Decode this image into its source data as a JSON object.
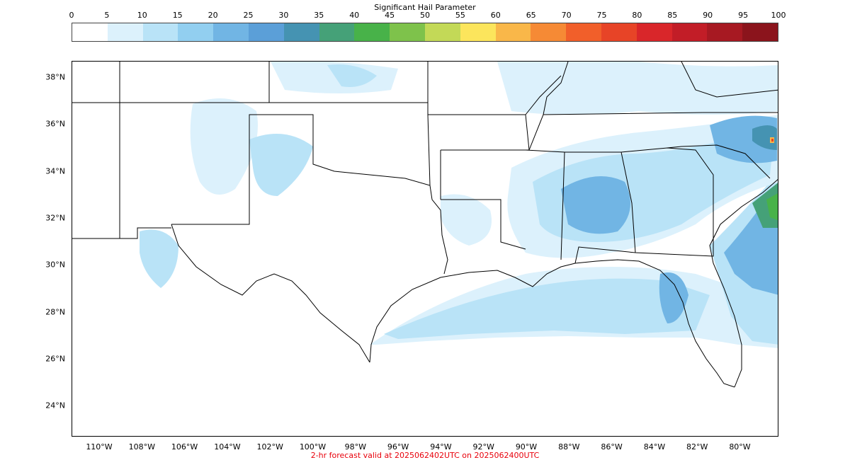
{
  "colorbar": {
    "title": "Significant Hail Parameter",
    "ticks": [
      "0",
      "5",
      "10",
      "15",
      "20",
      "25",
      "30",
      "35",
      "40",
      "45",
      "50",
      "55",
      "60",
      "65",
      "70",
      "75",
      "80",
      "85",
      "90",
      "95",
      "100"
    ],
    "colors": [
      "#ffffff",
      "#dcf1fc",
      "#b9e3f7",
      "#92cff0",
      "#71b5e4",
      "#5b9fd8",
      "#4593b2",
      "#45a178",
      "#48b249",
      "#7ec24b",
      "#c3d957",
      "#fce55c",
      "#f9b749",
      "#f68a35",
      "#f15f2a",
      "#e74427",
      "#d9262a",
      "#c21d27",
      "#a71922",
      "#8b141c"
    ]
  },
  "map": {
    "lat_labels": [
      "38°N",
      "36°N",
      "34°N",
      "32°N",
      "30°N",
      "28°N",
      "26°N",
      "24°N"
    ],
    "lon_labels": [
      "110°W",
      "108°W",
      "106°W",
      "104°W",
      "102°W",
      "100°W",
      "98°W",
      "96°W",
      "94°W",
      "92°W",
      "90°W",
      "88°W",
      "86°W",
      "84°W",
      "82°W",
      "80°W"
    ]
  },
  "caption": {
    "text": "2-hr forecast valid at 2025062402UTC on 2025062400UTC",
    "color": "#e8000b"
  }
}
